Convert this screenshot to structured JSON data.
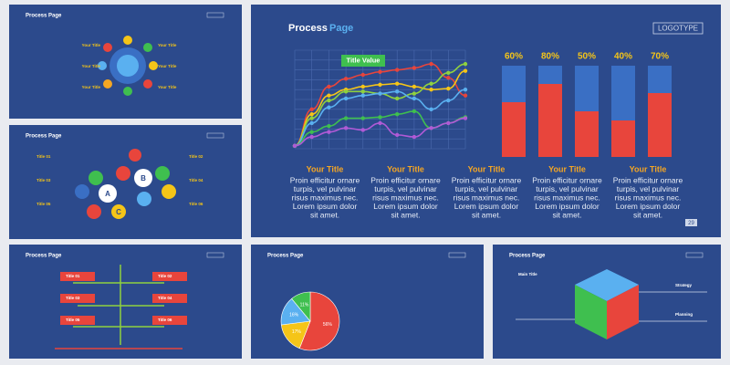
{
  "main_slide": {
    "title_a": "Process",
    "title_b": "Page",
    "logo": "LOGOTYPE",
    "page_number": "29",
    "tag": "Title Value",
    "line_chart": {
      "ylim": [
        0,
        10
      ],
      "series": [
        {
          "color": "#e8453c",
          "values": [
            0.3,
            4,
            6.3,
            7.1,
            7.5,
            7.8,
            8,
            8.2,
            8.6,
            7.2,
            5.4
          ]
        },
        {
          "color": "#f5c518",
          "values": [
            0.3,
            3.5,
            5.4,
            6,
            6.3,
            6.5,
            6.6,
            6.3,
            6,
            6.1,
            7.9
          ]
        },
        {
          "color": "#8fd13f",
          "values": [
            0.3,
            3.1,
            4.9,
            5.8,
            5.8,
            5.6,
            5.1,
            5.6,
            6.6,
            7.7,
            8.6
          ]
        },
        {
          "color": "#5ab0f0",
          "values": [
            0.3,
            2.6,
            4.2,
            5.1,
            5.4,
            5.6,
            5.8,
            5.1,
            4,
            4.9,
            6
          ]
        },
        {
          "color": "#3fbf4f",
          "values": [
            0.3,
            1.7,
            2.3,
            3.1,
            3.1,
            3.2,
            3.5,
            3.8,
            2.1,
            2.6,
            3.2
          ]
        },
        {
          "color": "#b05ad6",
          "values": [
            0.3,
            1.2,
            1.7,
            2.1,
            1.9,
            2.6,
            1.4,
            1.2,
            2.1,
            2.6,
            3.1
          ]
        }
      ]
    },
    "bar_chart": {
      "ylim": [
        0,
        100
      ],
      "fill_color": "#e8453c",
      "track_color": "#3a6fc4",
      "values": [
        60,
        80,
        50,
        40,
        70
      ],
      "value_labels": [
        "60%",
        "80%",
        "50%",
        "40%",
        "70%"
      ]
    },
    "columns": [
      {
        "title": "Your Title",
        "body_lines": [
          "Proin efficitur ornare",
          "turpis, vel pulvinar",
          "risus maximus nec.",
          "Lorem ipsum dolor",
          "sit amet."
        ]
      },
      {
        "title": "Your Title",
        "body_lines": [
          "Proin efficitur ornare",
          "turpis, vel pulvinar",
          "risus maximus nec.",
          "Lorem ipsum dolor",
          "sit amet."
        ]
      },
      {
        "title": "Your Title",
        "body_lines": [
          "Proin efficitur ornare",
          "turpis, vel pulvinar",
          "risus maximus nec.",
          "Lorem ipsum dolor",
          "sit amet."
        ]
      },
      {
        "title": "Your Title",
        "body_lines": [
          "Proin efficitur ornare",
          "turpis, vel pulvinar",
          "risus maximus nec.",
          "Lorem ipsum dolor",
          "sit amet."
        ]
      },
      {
        "title": "Your Title",
        "body_lines": [
          "Proin efficitur ornare",
          "turpis, vel pulvinar",
          "risus maximus nec.",
          "Lorem ipsum dolor",
          "sit amet."
        ]
      }
    ]
  },
  "thumbnails": [
    {
      "title": "Process Page",
      "labels": [
        "Your Title",
        "Your Title",
        "Your Title",
        "Your Title",
        "Your Title",
        "Your Title"
      ]
    },
    {
      "title": "Process Page",
      "labels": [
        "Title 01",
        "Title 02",
        "Title 03",
        "Title 04",
        "Title 05",
        "Title 06"
      ],
      "letters": [
        "A",
        "B",
        "C"
      ]
    },
    {
      "title": "Process Page",
      "labels": [
        "Title 01",
        "Title 02",
        "Title 03",
        "Title 04",
        "Title 05",
        "Title 06"
      ]
    },
    {
      "title": "Process Page",
      "pie": {
        "values": [
          56,
          17,
          16,
          11
        ],
        "value_labels": [
          "56%",
          "17%",
          "16%",
          "11%"
        ],
        "colors": [
          "#e8453c",
          "#f5c518",
          "#5ab0f0",
          "#3fbf4f"
        ]
      }
    },
    {
      "title": "Process Page",
      "labels": [
        "Main Title",
        "Strategy",
        "Planning"
      ]
    }
  ]
}
